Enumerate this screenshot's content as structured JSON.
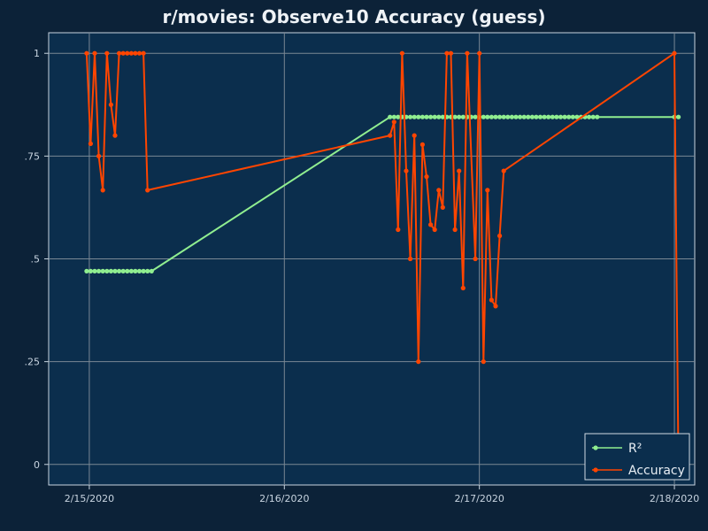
{
  "title": "r/movies: Observe10 Accuracy (guess)",
  "colors": {
    "page_bg": "#0c2238",
    "plot_bg": "#0b2e4d",
    "grid": "#7a8894",
    "axis": "#c8d4e0",
    "r2": "#90ee90",
    "accuracy": "#ff4500"
  },
  "legend_placement": "bottom-right",
  "chart_data": {
    "type": "line",
    "title": "r/movies: Observe10 Accuracy (guess)",
    "xlabel": "",
    "ylabel": "",
    "x_is_date": true,
    "xlim": [
      "2020-02-14T19:00",
      "2020-02-18T02:30"
    ],
    "ylim": [
      -0.05,
      1.05
    ],
    "grid": true,
    "x_ticks": [
      {
        "value": "2020-02-15T00:00",
        "label": "2/15/2020"
      },
      {
        "value": "2020-02-16T00:00",
        "label": "2/16/2020"
      },
      {
        "value": "2020-02-17T00:00",
        "label": "2/17/2020"
      },
      {
        "value": "2020-02-18T00:00",
        "label": "2/18/2020"
      }
    ],
    "y_ticks": [
      {
        "value": 0,
        "label": "0"
      },
      {
        "value": 0.25,
        "label": ".25"
      },
      {
        "value": 0.5,
        "label": ".5"
      },
      {
        "value": 0.75,
        "label": ".75"
      },
      {
        "value": 1,
        "label": "1"
      }
    ],
    "series": [
      {
        "name": "R²",
        "color": "#90ee90",
        "points": [
          [
            "2020-02-14T23:40",
            0.47
          ],
          [
            "2020-02-15T00:10",
            0.47
          ],
          [
            "2020-02-15T00:40",
            0.47
          ],
          [
            "2020-02-15T01:10",
            0.47
          ],
          [
            "2020-02-15T01:40",
            0.47
          ],
          [
            "2020-02-15T02:10",
            0.47
          ],
          [
            "2020-02-15T02:40",
            0.47
          ],
          [
            "2020-02-15T03:10",
            0.47
          ],
          [
            "2020-02-15T03:40",
            0.47
          ],
          [
            "2020-02-15T04:10",
            0.47
          ],
          [
            "2020-02-15T04:40",
            0.47
          ],
          [
            "2020-02-15T05:10",
            0.47
          ],
          [
            "2020-02-15T05:40",
            0.47
          ],
          [
            "2020-02-15T06:10",
            0.47
          ],
          [
            "2020-02-15T06:40",
            0.47
          ],
          [
            "2020-02-15T07:10",
            0.47
          ],
          [
            "2020-02-15T07:40",
            0.47
          ],
          [
            "2020-02-16T13:00",
            0.845
          ],
          [
            "2020-02-16T13:30",
            0.845
          ],
          [
            "2020-02-16T14:00",
            0.845
          ],
          [
            "2020-02-16T14:30",
            0.845
          ],
          [
            "2020-02-16T15:00",
            0.845
          ],
          [
            "2020-02-16T15:30",
            0.845
          ],
          [
            "2020-02-16T16:00",
            0.845
          ],
          [
            "2020-02-16T16:30",
            0.845
          ],
          [
            "2020-02-16T17:00",
            0.845
          ],
          [
            "2020-02-16T17:30",
            0.845
          ],
          [
            "2020-02-16T18:00",
            0.845
          ],
          [
            "2020-02-16T18:30",
            0.845
          ],
          [
            "2020-02-16T19:00",
            0.845
          ],
          [
            "2020-02-16T19:30",
            0.845
          ],
          [
            "2020-02-16T20:00",
            0.845
          ],
          [
            "2020-02-16T20:30",
            0.845
          ],
          [
            "2020-02-16T21:00",
            0.845
          ],
          [
            "2020-02-16T21:30",
            0.845
          ],
          [
            "2020-02-16T22:00",
            0.845
          ],
          [
            "2020-02-16T22:30",
            0.845
          ],
          [
            "2020-02-16T23:00",
            0.845
          ],
          [
            "2020-02-16T23:30",
            0.845
          ],
          [
            "2020-02-17T00:00",
            0.845
          ],
          [
            "2020-02-17T00:30",
            0.845
          ],
          [
            "2020-02-17T01:00",
            0.845
          ],
          [
            "2020-02-17T01:30",
            0.845
          ],
          [
            "2020-02-17T02:00",
            0.845
          ],
          [
            "2020-02-17T02:30",
            0.845
          ],
          [
            "2020-02-17T03:00",
            0.845
          ],
          [
            "2020-02-17T03:30",
            0.845
          ],
          [
            "2020-02-17T04:00",
            0.845
          ],
          [
            "2020-02-17T04:30",
            0.845
          ],
          [
            "2020-02-17T05:00",
            0.845
          ],
          [
            "2020-02-17T05:30",
            0.845
          ],
          [
            "2020-02-17T06:00",
            0.845
          ],
          [
            "2020-02-17T06:30",
            0.845
          ],
          [
            "2020-02-17T07:00",
            0.845
          ],
          [
            "2020-02-17T07:30",
            0.845
          ],
          [
            "2020-02-17T08:00",
            0.845
          ],
          [
            "2020-02-17T08:30",
            0.845
          ],
          [
            "2020-02-17T09:00",
            0.845
          ],
          [
            "2020-02-17T09:30",
            0.845
          ],
          [
            "2020-02-17T10:00",
            0.845
          ],
          [
            "2020-02-17T10:30",
            0.845
          ],
          [
            "2020-02-17T11:00",
            0.845
          ],
          [
            "2020-02-17T11:30",
            0.845
          ],
          [
            "2020-02-17T12:00",
            0.845
          ],
          [
            "2020-02-17T12:30",
            0.845
          ],
          [
            "2020-02-17T13:00",
            0.845
          ],
          [
            "2020-02-17T13:30",
            0.845
          ],
          [
            "2020-02-17T14:00",
            0.845
          ],
          [
            "2020-02-17T14:30",
            0.845
          ],
          [
            "2020-02-18T00:00",
            0.845
          ],
          [
            "2020-02-18T00:30",
            0.845
          ]
        ]
      },
      {
        "name": "Accuracy",
        "color": "#ff4500",
        "points": [
          [
            "2020-02-14T23:40",
            1.0
          ],
          [
            "2020-02-15T00:10",
            0.78
          ],
          [
            "2020-02-15T00:40",
            1.0
          ],
          [
            "2020-02-15T01:10",
            0.75
          ],
          [
            "2020-02-15T01:40",
            0.667
          ],
          [
            "2020-02-15T02:10",
            1.0
          ],
          [
            "2020-02-15T02:40",
            0.875
          ],
          [
            "2020-02-15T03:10",
            0.8
          ],
          [
            "2020-02-15T03:40",
            1.0
          ],
          [
            "2020-02-15T04:10",
            1.0
          ],
          [
            "2020-02-15T04:40",
            1.0
          ],
          [
            "2020-02-15T05:10",
            1.0
          ],
          [
            "2020-02-15T05:40",
            1.0
          ],
          [
            "2020-02-15T06:10",
            1.0
          ],
          [
            "2020-02-15T06:40",
            1.0
          ],
          [
            "2020-02-15T07:10",
            0.667
          ],
          [
            "2020-02-16T13:00",
            0.8
          ],
          [
            "2020-02-16T13:30",
            0.833
          ],
          [
            "2020-02-16T14:00",
            0.571
          ],
          [
            "2020-02-16T14:30",
            1.0
          ],
          [
            "2020-02-16T15:00",
            0.714
          ],
          [
            "2020-02-16T15:30",
            0.5
          ],
          [
            "2020-02-16T16:00",
            0.8
          ],
          [
            "2020-02-16T16:30",
            0.25
          ],
          [
            "2020-02-16T17:00",
            0.778
          ],
          [
            "2020-02-16T17:30",
            0.7
          ],
          [
            "2020-02-16T18:00",
            0.583
          ],
          [
            "2020-02-16T18:30",
            0.571
          ],
          [
            "2020-02-16T19:00",
            0.667
          ],
          [
            "2020-02-16T19:30",
            0.625
          ],
          [
            "2020-02-16T20:00",
            1.0
          ],
          [
            "2020-02-16T20:30",
            1.0
          ],
          [
            "2020-02-16T21:00",
            0.571
          ],
          [
            "2020-02-16T21:30",
            0.714
          ],
          [
            "2020-02-16T22:00",
            0.429
          ],
          [
            "2020-02-16T22:30",
            1.0
          ],
          [
            "2020-02-16T23:30",
            0.5
          ],
          [
            "2020-02-17T00:00",
            1.0
          ],
          [
            "2020-02-17T00:30",
            0.25
          ],
          [
            "2020-02-17T01:00",
            0.667
          ],
          [
            "2020-02-17T01:30",
            0.4
          ],
          [
            "2020-02-17T02:00",
            0.385
          ],
          [
            "2020-02-17T02:30",
            0.556
          ],
          [
            "2020-02-17T03:00",
            0.714
          ],
          [
            "2020-02-18T00:00",
            1.0
          ],
          [
            "2020-02-18T00:30",
            0.0
          ]
        ]
      }
    ]
  }
}
